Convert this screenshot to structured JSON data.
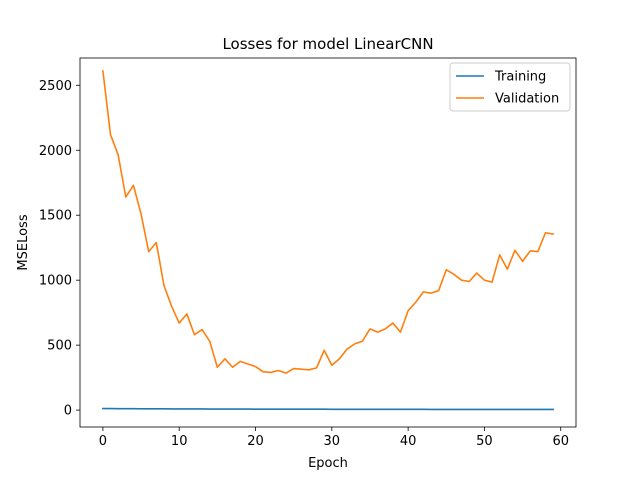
{
  "chart_data": {
    "type": "line",
    "title": "Losses for model LinearCNN",
    "xlabel": "Epoch",
    "ylabel": "MSELoss",
    "xlim": [
      -3,
      62
    ],
    "ylim": [
      -130,
      2710
    ],
    "xticks": [
      0,
      10,
      20,
      30,
      40,
      50,
      60
    ],
    "yticks": [
      0,
      500,
      1000,
      1500,
      2000,
      2500
    ],
    "grid": false,
    "legend_position": "top-right",
    "x": [
      0,
      1,
      2,
      3,
      4,
      5,
      6,
      7,
      8,
      9,
      10,
      11,
      12,
      13,
      14,
      15,
      16,
      17,
      18,
      19,
      20,
      21,
      22,
      23,
      24,
      25,
      26,
      27,
      28,
      29,
      30,
      31,
      32,
      33,
      34,
      35,
      36,
      37,
      38,
      39,
      40,
      41,
      42,
      43,
      44,
      45,
      46,
      47,
      48,
      49,
      50,
      51,
      52,
      53,
      54,
      55,
      56,
      57,
      58,
      59
    ],
    "series": [
      {
        "name": "Training",
        "color": "#1f77b4",
        "values": [
          12,
          12,
          11,
          11,
          11,
          10,
          10,
          10,
          10,
          9,
          9,
          9,
          9,
          9,
          8,
          8,
          8,
          8,
          8,
          8,
          7,
          7,
          7,
          7,
          7,
          7,
          7,
          7,
          7,
          7,
          6,
          6,
          6,
          6,
          6,
          6,
          6,
          6,
          6,
          6,
          6,
          6,
          6,
          5,
          5,
          5,
          5,
          5,
          5,
          5,
          5,
          5,
          5,
          5,
          5,
          5,
          5,
          5,
          5,
          5
        ]
      },
      {
        "name": "Validation",
        "color": "#ff7f0e",
        "values": [
          2610,
          2120,
          1965,
          1640,
          1730,
          1510,
          1220,
          1290,
          960,
          800,
          670,
          740,
          580,
          620,
          530,
          330,
          395,
          330,
          375,
          355,
          335,
          295,
          290,
          305,
          285,
          320,
          315,
          310,
          325,
          460,
          345,
          395,
          470,
          510,
          530,
          625,
          600,
          625,
          670,
          600,
          765,
          830,
          910,
          900,
          920,
          1080,
          1045,
          1000,
          990,
          1055,
          1000,
          985,
          1195,
          1085,
          1230,
          1145,
          1225,
          1220,
          1365,
          1355
        ]
      }
    ]
  }
}
